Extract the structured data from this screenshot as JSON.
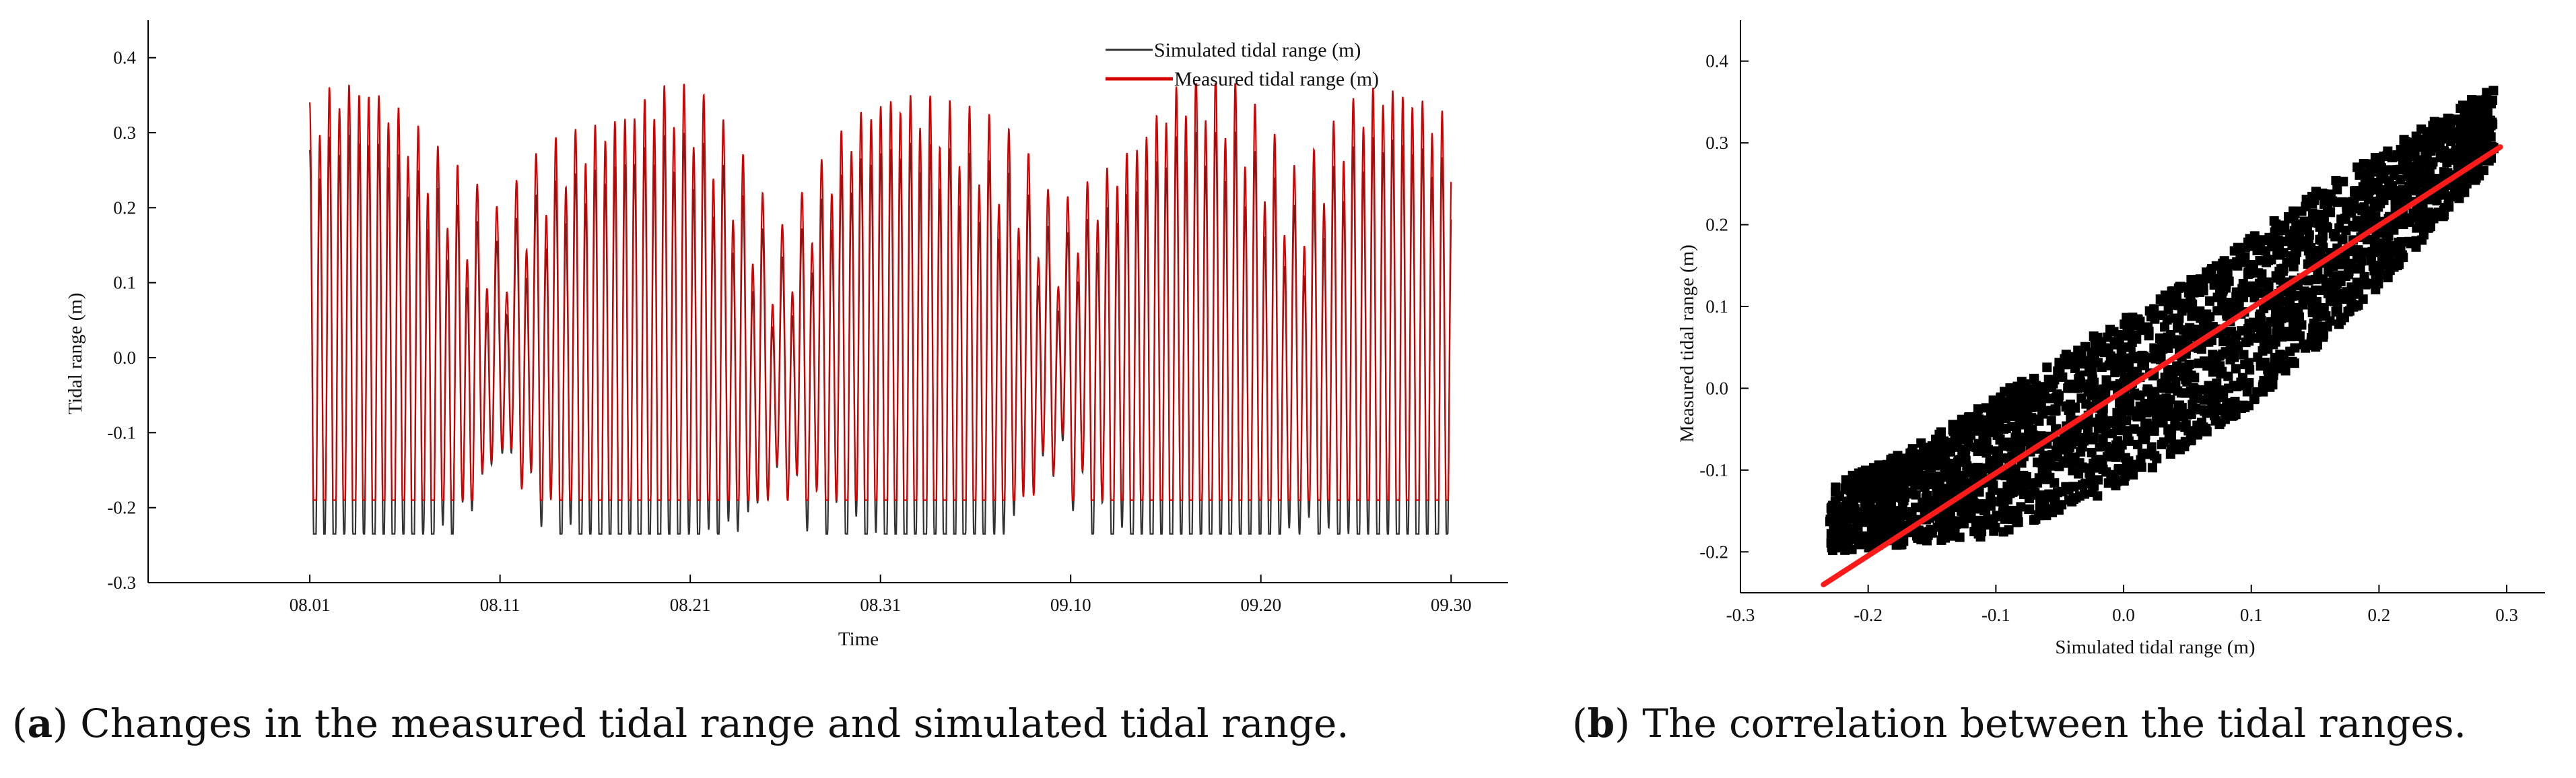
{
  "colors": {
    "simulated": "#333333",
    "measured": "#d40000",
    "scatter": "#000000",
    "fit": "#ff1a1a"
  },
  "captions": {
    "a_label": "a",
    "a_text": " Changes in the measured tidal range and simulated tidal range.",
    "b_label": "b",
    "b_text": " The correlation between the tidal ranges."
  },
  "chart_data": [
    {
      "id": "a",
      "type": "line",
      "title": "",
      "xlabel": "Time",
      "ylabel": "Tidal range  (m)",
      "x_start_day": 0,
      "x_end_day": 60,
      "xlim_days": [
        -8.5,
        63
      ],
      "x_ticks": [
        {
          "day": 0,
          "label": "08.01"
        },
        {
          "day": 10,
          "label": "08.11"
        },
        {
          "day": 20,
          "label": "08.21"
        },
        {
          "day": 30,
          "label": "08.31"
        },
        {
          "day": 40,
          "label": "09.10"
        },
        {
          "day": 50,
          "label": "09.20"
        },
        {
          "day": 60,
          "label": "09.30"
        }
      ],
      "ylim": [
        -0.3,
        0.45
      ],
      "y_ticks": [
        -0.3,
        -0.2,
        -0.1,
        0.0,
        0.1,
        0.2,
        0.3,
        0.4
      ],
      "y_tick_labels": [
        "-0.3",
        "-0.2",
        "-0.1",
        "0.0",
        "0.1",
        "0.2",
        "0.3",
        "0.4"
      ],
      "legend_position": "top-right",
      "series": [
        {
          "name": "Simulated tidal range (m)",
          "key": "simulated",
          "mean": -0.02,
          "peak_max": 0.3,
          "trough_min": -0.235,
          "spring_tide_days": [
            2.5,
            17.5,
            32,
            46.5,
            57.5
          ],
          "neap_tide_days": [
            10,
            25,
            39.5,
            53
          ]
        },
        {
          "name": "Measured tidal range (m)",
          "key": "measured",
          "mean": 0.0,
          "peak_max": 0.365,
          "trough_min": -0.19,
          "spring_tide_days": [
            2.5,
            17.5,
            32,
            46.5,
            57.5
          ],
          "neap_tide_days": [
            10,
            25,
            39.5,
            53
          ]
        }
      ]
    },
    {
      "id": "b",
      "type": "scatter",
      "title": "",
      "xlabel": "Simulated tidal range (m)",
      "ylabel": "Measured tidal range (m)",
      "xlim": [
        -0.3,
        0.33
      ],
      "ylim": [
        -0.25,
        0.45
      ],
      "x_ticks": [
        -0.3,
        -0.2,
        -0.1,
        0.0,
        0.1,
        0.2,
        0.3
      ],
      "x_tick_labels": [
        "-0.3",
        "-0.2",
        "-0.1",
        "0.0",
        "0.1",
        "0.2",
        "0.3"
      ],
      "y_ticks": [
        -0.2,
        -0.1,
        0.0,
        0.1,
        0.2,
        0.3,
        0.4
      ],
      "y_tick_labels": [
        "-0.2",
        "-0.1",
        "0.0",
        "0.1",
        "0.2",
        "0.3",
        "0.4"
      ],
      "point_cloud": {
        "x_range": [
          -0.23,
          0.29
        ],
        "y_range": [
          -0.2,
          0.37
        ],
        "lower_envelope": [
          [
            -0.23,
            -0.2
          ],
          [
            -0.1,
            -0.18
          ],
          [
            0.0,
            -0.12
          ],
          [
            0.1,
            -0.02
          ],
          [
            0.2,
            0.12
          ],
          [
            0.29,
            0.28
          ]
        ],
        "upper_envelope": [
          [
            -0.23,
            -0.12
          ],
          [
            -0.15,
            -0.06
          ],
          [
            -0.05,
            0.04
          ],
          [
            0.05,
            0.13
          ],
          [
            0.15,
            0.24
          ],
          [
            0.29,
            0.37
          ]
        ]
      },
      "fit_line": {
        "x": [
          -0.235,
          0.295
        ],
        "y": [
          -0.24,
          0.295
        ]
      }
    }
  ]
}
